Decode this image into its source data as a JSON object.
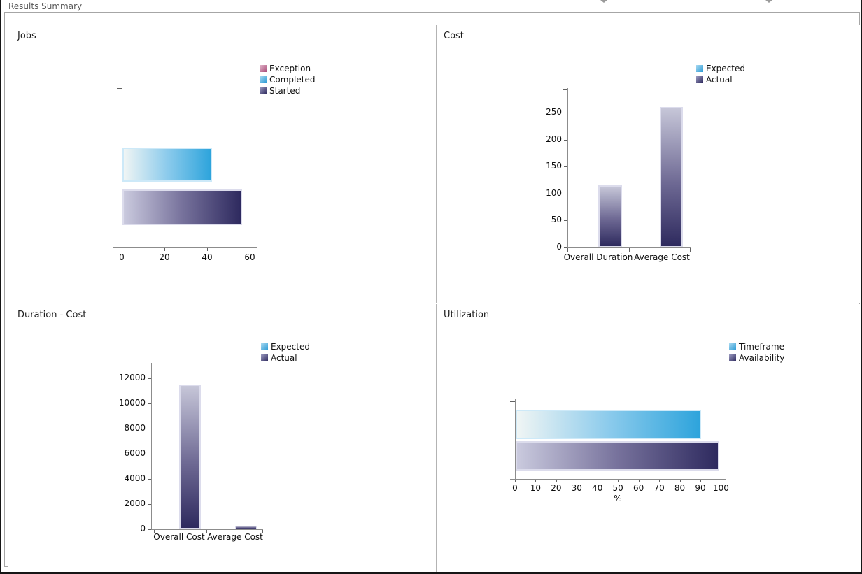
{
  "header": {
    "title": "Results Summary",
    "collapse_icon": "splitter-collapse-arrow"
  },
  "colors": {
    "accent_blue": "#2ea4dc",
    "accent_navy": "#2e2a5e",
    "accent_pink": "#aa4d7a",
    "axis_gray": "#8c8c8c",
    "header_text": "#585858",
    "panel_border": "#a6a6a6",
    "window_border": "#161616",
    "background": "#ffffff"
  },
  "chart_data": [
    {
      "type": "bar",
      "orientation": "horizontal",
      "title": "Jobs",
      "series": [
        {
          "name": "Exception",
          "color": "pink",
          "value": 0
        },
        {
          "name": "Completed",
          "color": "blue",
          "value": 42
        },
        {
          "name": "Started",
          "color": "navy",
          "value": 56
        }
      ],
      "xlim": [
        0,
        60
      ],
      "xticks": [
        0,
        20,
        40,
        60
      ],
      "legend_position": "top-right",
      "grid": false
    },
    {
      "type": "bar",
      "orientation": "vertical",
      "title": "Cost",
      "categories": [
        "Overall Duration",
        "Average Cost"
      ],
      "series": [
        {
          "name": "Expected",
          "color": "blue",
          "values": [
            0,
            0
          ]
        },
        {
          "name": "Actual",
          "color": "navy",
          "values": [
            115,
            260
          ]
        }
      ],
      "ylim": [
        0,
        290
      ],
      "yticks": [
        0,
        50,
        100,
        150,
        200,
        250
      ],
      "legend_position": "top-right",
      "grid": false
    },
    {
      "type": "bar",
      "orientation": "vertical",
      "title": "Duration - Cost",
      "categories": [
        "Overall Cost",
        "Average Cost"
      ],
      "series": [
        {
          "name": "Expected",
          "color": "blue",
          "values": [
            0,
            0
          ]
        },
        {
          "name": "Actual",
          "color": "navy",
          "values": [
            11480,
            260
          ]
        }
      ],
      "ylim": [
        0,
        13000
      ],
      "yticks": [
        0,
        2000,
        4000,
        6000,
        8000,
        10000,
        12000
      ],
      "legend_position": "top-right",
      "grid": false
    },
    {
      "type": "bar",
      "orientation": "horizontal",
      "title": "Utilization",
      "series": [
        {
          "name": "Timeframe",
          "color": "blue",
          "value": 90
        },
        {
          "name": "Availability",
          "color": "navy",
          "value": 99
        }
      ],
      "xlim": [
        0,
        100
      ],
      "xticks": [
        0,
        10,
        20,
        30,
        40,
        50,
        60,
        70,
        80,
        90,
        100
      ],
      "xlabel": "%",
      "legend_position": "top-right",
      "grid": false
    }
  ]
}
